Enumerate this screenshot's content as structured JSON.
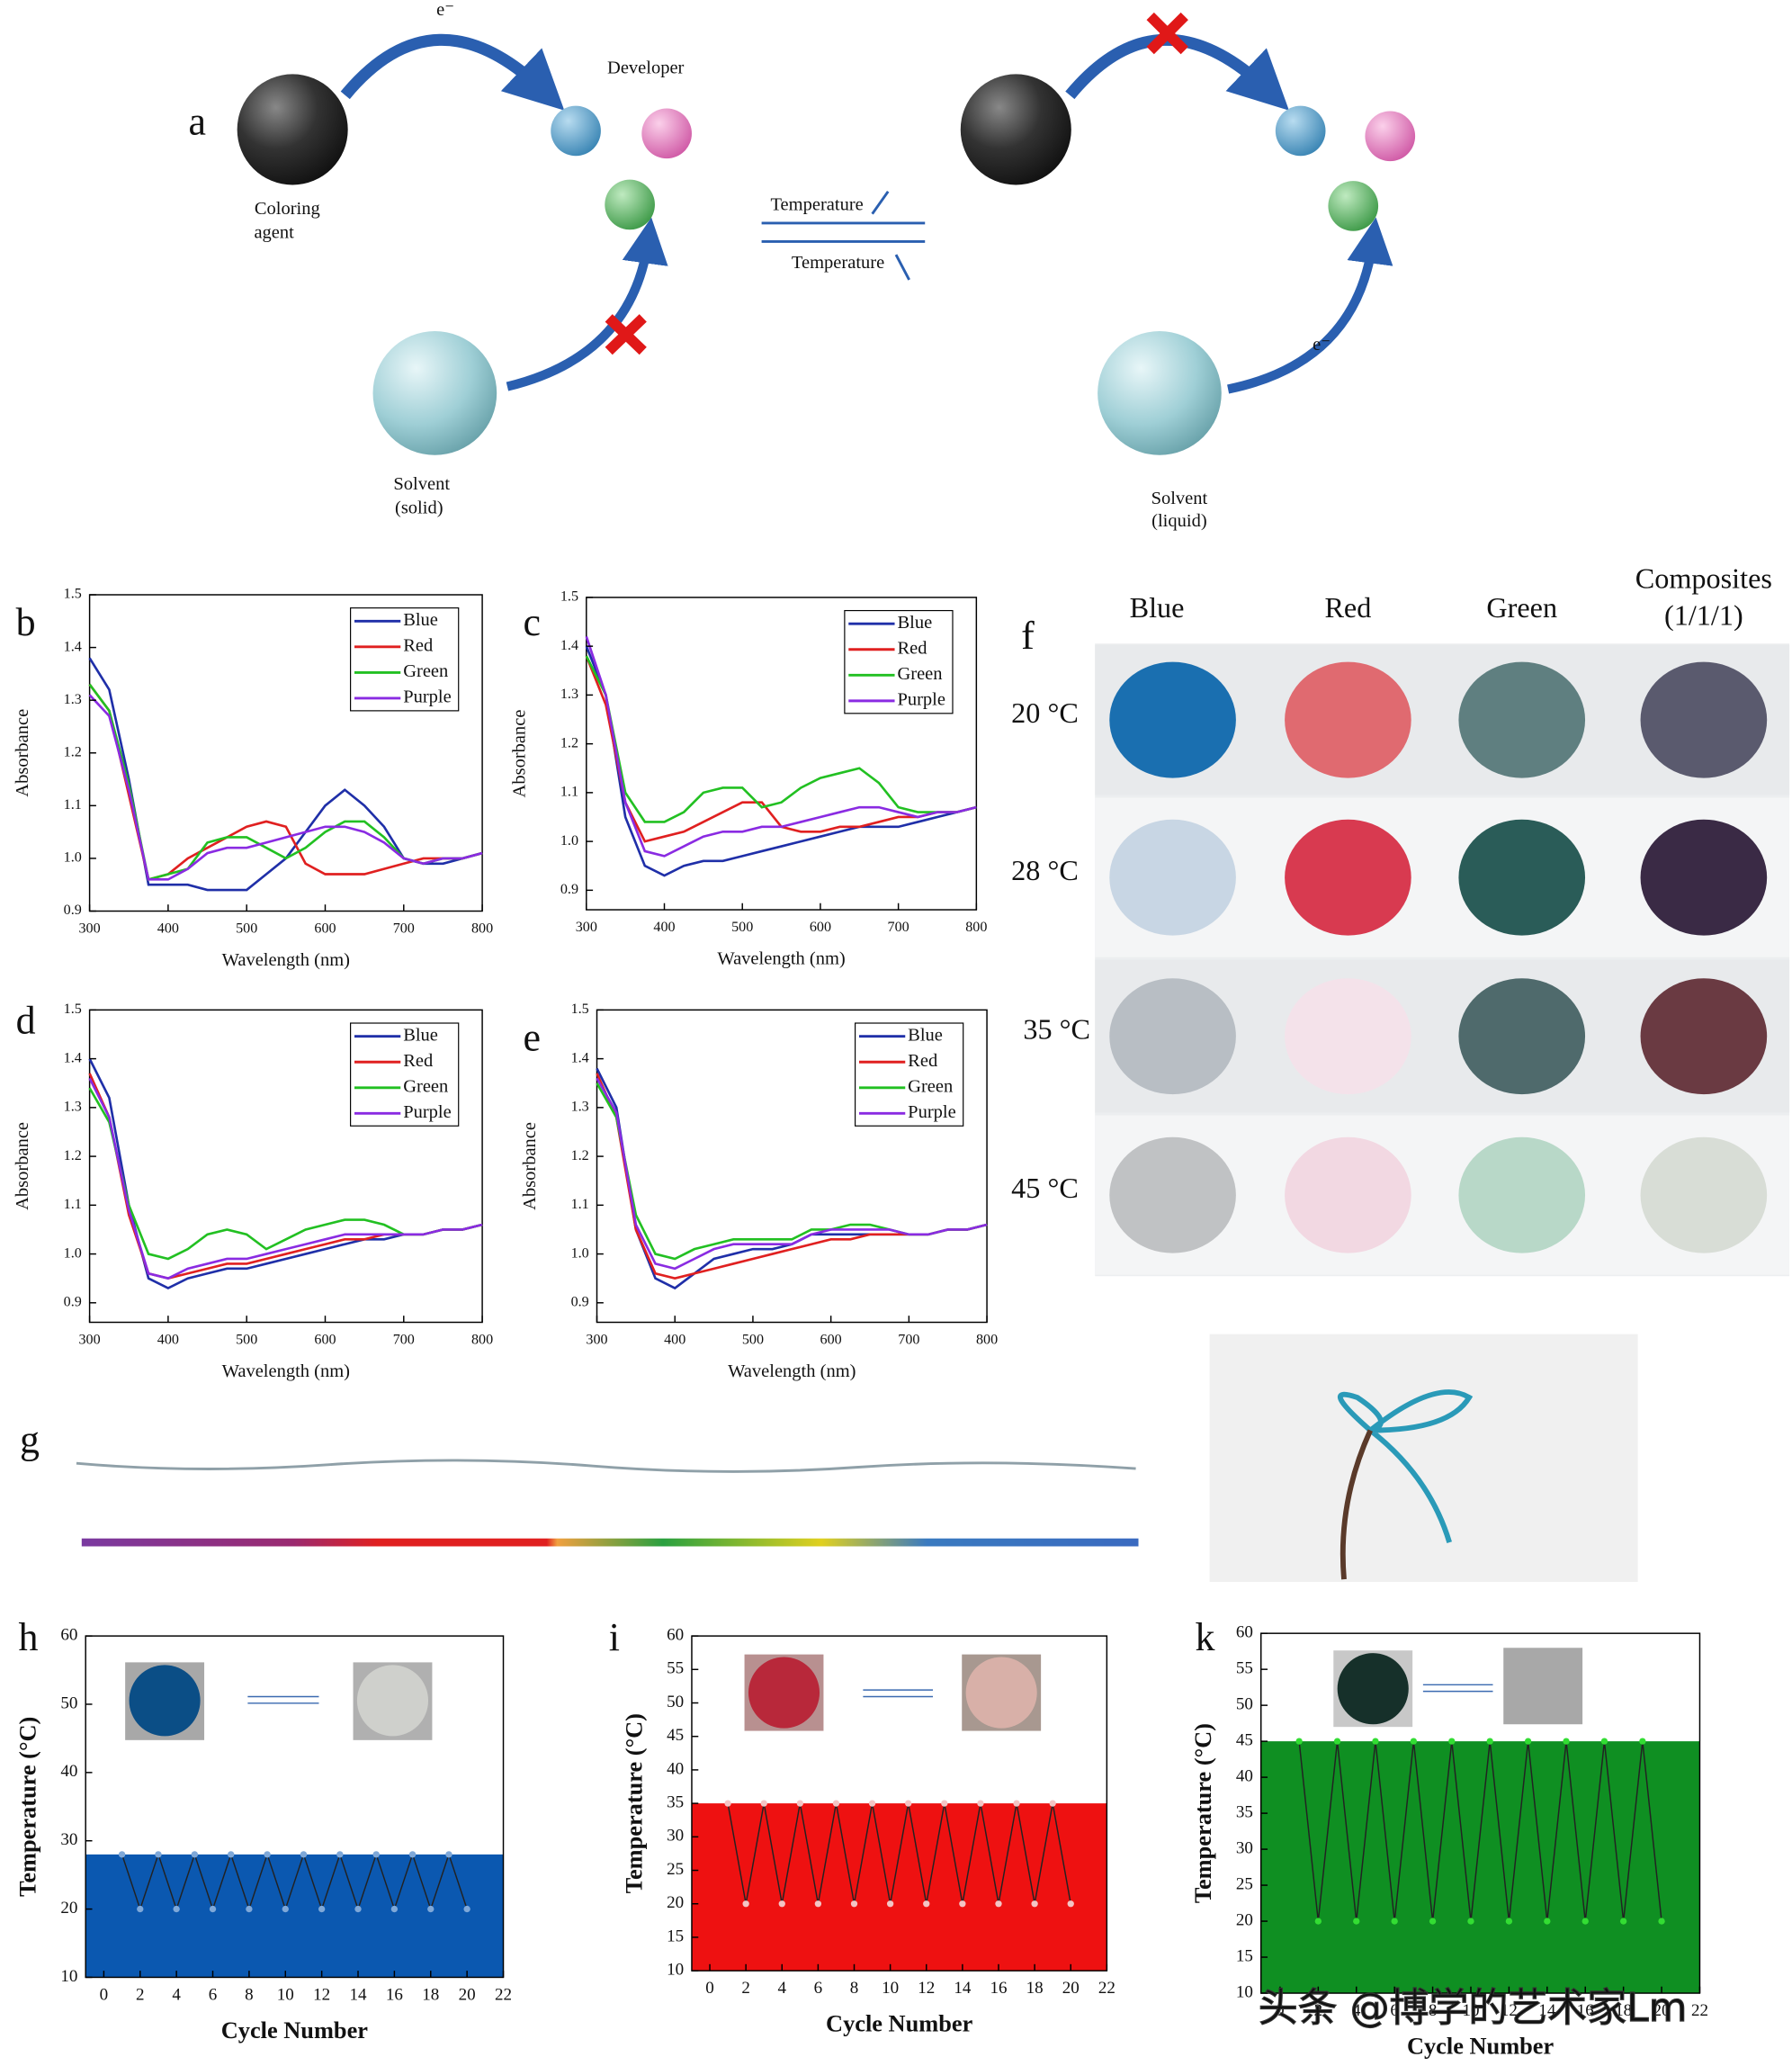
{
  "panel_a": {
    "label": "a",
    "electron_top": "e⁻",
    "developer": "Developer",
    "coloring_agent": [
      "Coloring",
      "agent"
    ],
    "solvent_solid": [
      "Solvent",
      "(solid)"
    ],
    "temperature_forward": "Temperature",
    "temperature_back": "Temperature",
    "solvent_liquid": [
      "Solvent",
      "(liquid)"
    ],
    "electron_right": "e⁻"
  },
  "panel_f": {
    "label": "f",
    "columns": [
      "Blue",
      "Red",
      "Green",
      [
        "Composites",
        "(1/1/1)"
      ]
    ],
    "rows": [
      "20 °C",
      "28 °C",
      "35 °C",
      "45 °C"
    ],
    "swatch_colors": [
      [
        "#1a6fb0",
        "#e06a70",
        "#5f7f80",
        "#5a5a6e"
      ],
      [
        "#c8d6e4",
        "#d83a50",
        "#2a5c58",
        "#3a2a45"
      ],
      [
        "#b8bec4",
        "#f4e2ea",
        "#4f6a6c",
        "#6a3a42"
      ],
      [
        "#c0c2c4",
        "#f2d8e2",
        "#b8d8c8",
        "#d8ddd6"
      ]
    ]
  },
  "panel_g": {
    "label": "g"
  },
  "watermark": "头条 @博学的艺术家Lm",
  "chart_data": [
    {
      "type": "line",
      "panel_label": "b",
      "x_label": "Wavelength (nm)",
      "y_label": "Absorbance",
      "legend": "upper right",
      "xlim": [
        300,
        800
      ],
      "ylim": [
        0.9,
        1.5
      ],
      "xticks": [
        300,
        400,
        500,
        600,
        700,
        800
      ],
      "yticks": [
        0.9,
        {
          "value": 1,
          "label": "1.0"
        },
        1.1,
        1.2,
        1.3,
        1.4,
        1.5
      ],
      "x": [
        300,
        325,
        350,
        375,
        400,
        425,
        450,
        475,
        500,
        525,
        550,
        575,
        600,
        625,
        650,
        675,
        700,
        725,
        750,
        775,
        800
      ],
      "series": [
        {
          "name": "Blue",
          "color": "#1f2fa8",
          "values": [
            1.38,
            1.32,
            1.15,
            0.95,
            0.95,
            0.95,
            0.94,
            0.94,
            0.94,
            0.97,
            1.0,
            1.05,
            1.1,
            1.13,
            1.1,
            1.06,
            1.0,
            0.99,
            0.99,
            1.0,
            1.01
          ]
        },
        {
          "name": "Red",
          "color": "#e02020",
          "values": [
            1.33,
            1.28,
            1.12,
            0.96,
            0.97,
            1.0,
            1.02,
            1.04,
            1.06,
            1.07,
            1.06,
            0.99,
            0.97,
            0.97,
            0.97,
            0.98,
            0.99,
            1.0,
            1.0,
            1.0,
            1.01
          ]
        },
        {
          "name": "Green",
          "color": "#22c022",
          "values": [
            1.33,
            1.28,
            1.14,
            0.96,
            0.97,
            0.98,
            1.03,
            1.04,
            1.04,
            1.02,
            1.0,
            1.02,
            1.05,
            1.07,
            1.07,
            1.04,
            1.0,
            0.99,
            1.0,
            1.0,
            1.01
          ]
        },
        {
          "name": "Purple",
          "color": "#8a2be2",
          "values": [
            1.31,
            1.27,
            1.13,
            0.96,
            0.96,
            0.98,
            1.01,
            1.02,
            1.02,
            1.03,
            1.04,
            1.05,
            1.06,
            1.06,
            1.05,
            1.03,
            1.0,
            0.99,
            1.0,
            1.0,
            1.01
          ]
        }
      ]
    },
    {
      "type": "line",
      "panel_label": "c",
      "x_label": "Wavelength (nm)",
      "y_label": "Absorbance",
      "legend": "upper right",
      "xlim": [
        300,
        800
      ],
      "ylim": [
        0.86,
        1.5
      ],
      "xticks": [
        300,
        400,
        500,
        600,
        700,
        800
      ],
      "yticks": [
        0.9,
        {
          "value": 1,
          "label": "1.0"
        },
        1.1,
        1.2,
        1.3,
        1.4,
        1.5
      ],
      "x": [
        300,
        325,
        350,
        375,
        400,
        425,
        450,
        475,
        500,
        525,
        550,
        575,
        600,
        625,
        650,
        675,
        700,
        725,
        750,
        775,
        800
      ],
      "series": [
        {
          "name": "Blue",
          "color": "#1f2fa8",
          "values": [
            1.4,
            1.3,
            1.05,
            0.95,
            0.93,
            0.95,
            0.96,
            0.96,
            0.97,
            0.98,
            0.99,
            1.0,
            1.01,
            1.02,
            1.03,
            1.03,
            1.03,
            1.04,
            1.05,
            1.06,
            1.07
          ]
        },
        {
          "name": "Red",
          "color": "#e02020",
          "values": [
            1.38,
            1.28,
            1.08,
            1.0,
            1.01,
            1.02,
            1.04,
            1.06,
            1.08,
            1.08,
            1.03,
            1.02,
            1.02,
            1.03,
            1.03,
            1.04,
            1.05,
            1.05,
            1.06,
            1.06,
            1.07
          ]
        },
        {
          "name": "Green",
          "color": "#22c022",
          "values": [
            1.38,
            1.3,
            1.1,
            1.04,
            1.04,
            1.06,
            1.1,
            1.11,
            1.11,
            1.07,
            1.08,
            1.11,
            1.13,
            1.14,
            1.15,
            1.12,
            1.07,
            1.06,
            1.06,
            1.06,
            1.07
          ]
        },
        {
          "name": "Purple",
          "color": "#8a2be2",
          "values": [
            1.42,
            1.3,
            1.08,
            0.98,
            0.97,
            0.99,
            1.01,
            1.02,
            1.02,
            1.03,
            1.03,
            1.04,
            1.05,
            1.06,
            1.07,
            1.07,
            1.06,
            1.05,
            1.06,
            1.06,
            1.07
          ]
        }
      ]
    },
    {
      "type": "line",
      "panel_label": "d",
      "x_label": "Wavelength (nm)",
      "y_label": "Absorbance",
      "legend": "upper right",
      "xlim": [
        300,
        800
      ],
      "ylim": [
        0.86,
        1.5
      ],
      "xticks": [
        300,
        400,
        500,
        600,
        700,
        800
      ],
      "yticks": [
        0.9,
        {
          "value": 1,
          "label": "1.0"
        },
        1.1,
        1.2,
        1.3,
        1.4,
        1.5
      ],
      "x": [
        300,
        325,
        350,
        375,
        400,
        425,
        450,
        475,
        500,
        525,
        550,
        575,
        600,
        625,
        650,
        675,
        700,
        725,
        750,
        775,
        800
      ],
      "series": [
        {
          "name": "Blue",
          "color": "#1f2fa8",
          "values": [
            1.4,
            1.32,
            1.1,
            0.95,
            0.93,
            0.95,
            0.96,
            0.97,
            0.97,
            0.98,
            0.99,
            1.0,
            1.01,
            1.02,
            1.03,
            1.03,
            1.04,
            1.04,
            1.05,
            1.05,
            1.06
          ]
        },
        {
          "name": "Red",
          "color": "#e02020",
          "values": [
            1.37,
            1.28,
            1.08,
            0.96,
            0.95,
            0.96,
            0.97,
            0.98,
            0.98,
            0.99,
            1.0,
            1.01,
            1.02,
            1.03,
            1.03,
            1.04,
            1.04,
            1.04,
            1.05,
            1.05,
            1.06
          ]
        },
        {
          "name": "Green",
          "color": "#22c022",
          "values": [
            1.34,
            1.27,
            1.1,
            1.0,
            0.99,
            1.01,
            1.04,
            1.05,
            1.04,
            1.01,
            1.03,
            1.05,
            1.06,
            1.07,
            1.07,
            1.06,
            1.04,
            1.04,
            1.05,
            1.05,
            1.06
          ]
        },
        {
          "name": "Purple",
          "color": "#8a2be2",
          "values": [
            1.36,
            1.28,
            1.09,
            0.96,
            0.95,
            0.97,
            0.98,
            0.99,
            0.99,
            1.0,
            1.01,
            1.02,
            1.03,
            1.04,
            1.04,
            1.04,
            1.04,
            1.04,
            1.05,
            1.05,
            1.06
          ]
        }
      ]
    },
    {
      "type": "line",
      "panel_label": "e",
      "x_label": "Wavelength (nm)",
      "y_label": "Absorbance",
      "legend": "upper right",
      "xlim": [
        300,
        800
      ],
      "ylim": [
        0.86,
        1.5
      ],
      "xticks": [
        300,
        400,
        500,
        600,
        700,
        800
      ],
      "yticks": [
        0.9,
        {
          "value": 1,
          "label": "1.0"
        },
        1.1,
        1.2,
        1.3,
        1.4,
        1.5
      ],
      "x": [
        300,
        325,
        350,
        375,
        400,
        425,
        450,
        475,
        500,
        525,
        550,
        575,
        600,
        625,
        650,
        675,
        700,
        725,
        750,
        775,
        800
      ],
      "series": [
        {
          "name": "Blue",
          "color": "#1f2fa8",
          "values": [
            1.38,
            1.3,
            1.05,
            0.95,
            0.93,
            0.96,
            0.99,
            1.0,
            1.01,
            1.01,
            1.02,
            1.04,
            1.04,
            1.04,
            1.04,
            1.04,
            1.04,
            1.04,
            1.05,
            1.05,
            1.06
          ]
        },
        {
          "name": "Red",
          "color": "#e02020",
          "values": [
            1.37,
            1.28,
            1.05,
            0.96,
            0.95,
            0.96,
            0.97,
            0.98,
            0.99,
            1.0,
            1.01,
            1.02,
            1.03,
            1.03,
            1.04,
            1.04,
            1.04,
            1.04,
            1.05,
            1.05,
            1.06
          ]
        },
        {
          "name": "Green",
          "color": "#22c022",
          "values": [
            1.35,
            1.28,
            1.08,
            1.0,
            0.99,
            1.01,
            1.02,
            1.03,
            1.03,
            1.03,
            1.03,
            1.05,
            1.05,
            1.06,
            1.06,
            1.05,
            1.04,
            1.04,
            1.05,
            1.05,
            1.06
          ]
        },
        {
          "name": "Purple",
          "color": "#8a2be2",
          "values": [
            1.36,
            1.29,
            1.06,
            0.98,
            0.97,
            0.99,
            1.01,
            1.02,
            1.02,
            1.02,
            1.02,
            1.04,
            1.05,
            1.05,
            1.05,
            1.05,
            1.04,
            1.04,
            1.05,
            1.05,
            1.06
          ]
        }
      ]
    },
    {
      "type": "line",
      "panel_label": "h",
      "x_label": "Cycle Number",
      "y_label": "Temperature (°C)",
      "xlim": [
        -1,
        22
      ],
      "ylim": [
        10,
        60
      ],
      "xticks": [
        0,
        2,
        4,
        6,
        8,
        10,
        12,
        14,
        16,
        18,
        20,
        22
      ],
      "yticks": [
        10,
        20,
        30,
        40,
        50,
        60
      ],
      "x": [
        1,
        2,
        3,
        4,
        5,
        6,
        7,
        8,
        9,
        10,
        11,
        12,
        13,
        14,
        15,
        16,
        17,
        18,
        19,
        20
      ],
      "values": [
        28,
        20,
        28,
        20,
        28,
        20,
        28,
        20,
        28,
        20,
        28,
        20,
        28,
        20,
        28,
        20,
        28,
        20,
        28,
        20
      ],
      "color": "#222222",
      "marker_color": "#7fa8d8",
      "area_top": 28,
      "area_color": "#0b58b0"
    },
    {
      "type": "line",
      "panel_label": "i",
      "x_label": "Cycle Number",
      "y_label": "Temperature (°C)",
      "xlim": [
        -1,
        22
      ],
      "ylim": [
        10,
        60
      ],
      "xticks": [
        0,
        2,
        4,
        6,
        8,
        10,
        12,
        14,
        16,
        18,
        20,
        22
      ],
      "yticks": [
        10,
        15,
        20,
        25,
        30,
        35,
        40,
        45,
        50,
        55,
        60
      ],
      "x": [
        1,
        2,
        3,
        4,
        5,
        6,
        7,
        8,
        9,
        10,
        11,
        12,
        13,
        14,
        15,
        16,
        17,
        18,
        19,
        20
      ],
      "values": [
        35,
        20,
        35,
        20,
        35,
        20,
        35,
        20,
        35,
        20,
        35,
        20,
        35,
        20,
        35,
        20,
        35,
        20,
        35,
        20
      ],
      "color": "#222222",
      "marker_color": "#f4c4c4",
      "area_top": 35,
      "area_color": "#ee1111"
    },
    {
      "type": "line",
      "panel_label": "k",
      "x_label": "Cycle Number",
      "y_label": "Temperature (°C)",
      "xlim": [
        -1,
        22
      ],
      "ylim": [
        10,
        60
      ],
      "xticks": [
        0,
        2,
        4,
        6,
        8,
        10,
        12,
        14,
        16,
        18,
        20,
        22
      ],
      "yticks": [
        10,
        15,
        20,
        25,
        30,
        35,
        40,
        45,
        50,
        55,
        60
      ],
      "x": [
        1,
        2,
        3,
        4,
        5,
        6,
        7,
        8,
        9,
        10,
        11,
        12,
        13,
        14,
        15,
        16,
        17,
        18,
        19,
        20
      ],
      "values": [
        45,
        20,
        45,
        20,
        45,
        20,
        45,
        20,
        45,
        20,
        45,
        20,
        45,
        20,
        45,
        20,
        45,
        20,
        45,
        20
      ],
      "color": "#222222",
      "marker_color": "#33dd33",
      "area_top": 45,
      "area_color": "#0f8f22"
    }
  ]
}
